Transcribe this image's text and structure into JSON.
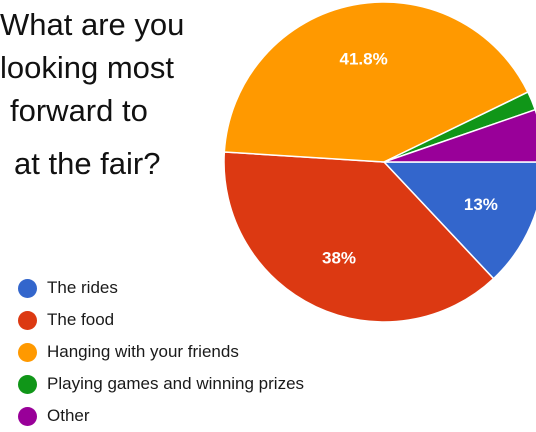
{
  "chart_data": {
    "type": "pie",
    "title_lines": [
      "What are you",
      "looking most",
      "forward to",
      "at the fair?"
    ],
    "categories": [
      "The rides",
      "The food",
      "Hanging with your friends",
      "Playing games and winning prizes",
      "Other"
    ],
    "values": [
      13,
      38,
      41.8,
      1.9,
      5.3
    ],
    "data_labels": [
      "13%",
      "38%",
      "41.8%",
      "",
      ""
    ],
    "colors": [
      "#3366cc",
      "#dc3912",
      "#ff9900",
      "#109618",
      "#990099"
    ],
    "legend_position": "bottom-left"
  }
}
